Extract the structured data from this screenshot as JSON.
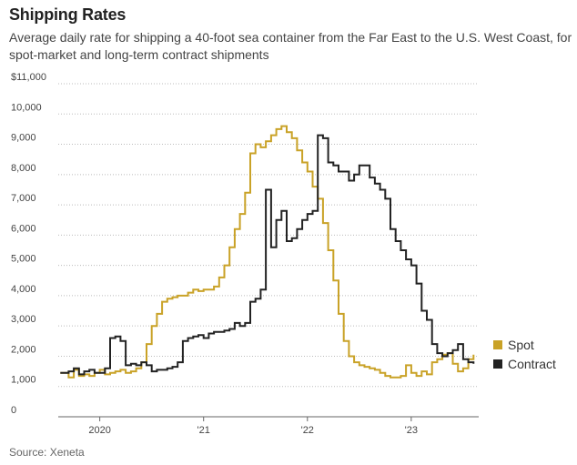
{
  "chart_data": {
    "type": "line",
    "title": "Shipping Rates",
    "subtitle": "Average daily rate for shipping a 40-foot sea container from the Far East to the U.S. West Coast, for spot-market and long-term contract shipments",
    "source": "Source: Xeneta",
    "xlabel": "",
    "ylabel": "",
    "xlim": [
      2019.6,
      2023.65
    ],
    "ylim": [
      0,
      11000
    ],
    "y_ticks": [
      {
        "value": 0,
        "label": "0"
      },
      {
        "value": 1000,
        "label": "1,000"
      },
      {
        "value": 2000,
        "label": "2,000"
      },
      {
        "value": 3000,
        "label": "3,000"
      },
      {
        "value": 4000,
        "label": "4,000"
      },
      {
        "value": 5000,
        "label": "5,000"
      },
      {
        "value": 6000,
        "label": "6,000"
      },
      {
        "value": 7000,
        "label": "7,000"
      },
      {
        "value": 8000,
        "label": "8,000"
      },
      {
        "value": 9000,
        "label": "9,000"
      },
      {
        "value": 10000,
        "label": "10,000"
      },
      {
        "value": 11000,
        "label": "$11,000"
      }
    ],
    "x_ticks": [
      {
        "value": 2020.0,
        "label": "2020"
      },
      {
        "value": 2021.0,
        "label": "'21"
      },
      {
        "value": 2022.0,
        "label": "'22"
      },
      {
        "value": 2023.0,
        "label": "'23"
      }
    ],
    "legend": "right",
    "series": [
      {
        "name": "Spot",
        "color": "#c9a227",
        "x": [
          2019.62,
          2019.7,
          2019.75,
          2019.8,
          2019.85,
          2019.9,
          2019.95,
          2020.0,
          2020.05,
          2020.1,
          2020.15,
          2020.2,
          2020.25,
          2020.3,
          2020.35,
          2020.4,
          2020.45,
          2020.5,
          2020.55,
          2020.6,
          2020.65,
          2020.7,
          2020.75,
          2020.8,
          2020.85,
          2020.9,
          2020.95,
          2021.0,
          2021.05,
          2021.1,
          2021.15,
          2021.2,
          2021.25,
          2021.3,
          2021.35,
          2021.4,
          2021.45,
          2021.5,
          2021.55,
          2021.6,
          2021.65,
          2021.7,
          2021.75,
          2021.8,
          2021.85,
          2021.9,
          2021.95,
          2022.0,
          2022.05,
          2022.1,
          2022.15,
          2022.2,
          2022.25,
          2022.3,
          2022.35,
          2022.4,
          2022.45,
          2022.5,
          2022.55,
          2022.6,
          2022.65,
          2022.7,
          2022.75,
          2022.8,
          2022.85,
          2022.9,
          2022.95,
          2023.0,
          2023.05,
          2023.1,
          2023.15,
          2023.2,
          2023.25,
          2023.3,
          2023.35,
          2023.4,
          2023.45,
          2023.5,
          2023.55,
          2023.6
        ],
        "values": [
          1450,
          1300,
          1550,
          1350,
          1400,
          1350,
          1450,
          1550,
          1400,
          1450,
          1500,
          1550,
          1450,
          1500,
          1600,
          1800,
          2400,
          3000,
          3400,
          3800,
          3900,
          3950,
          4000,
          4000,
          4100,
          4200,
          4150,
          4200,
          4200,
          4300,
          4600,
          5000,
          5600,
          6200,
          6700,
          7400,
          8700,
          9000,
          8900,
          9100,
          9300,
          9500,
          9600,
          9400,
          9200,
          8800,
          8400,
          8100,
          7600,
          7200,
          6400,
          5500,
          4500,
          3400,
          2500,
          2000,
          1800,
          1700,
          1650,
          1600,
          1550,
          1450,
          1350,
          1300,
          1300,
          1350,
          1700,
          1450,
          1350,
          1500,
          1400,
          1800,
          1900,
          2050,
          2100,
          1750,
          1500,
          1600,
          1900,
          2050
        ]
      },
      {
        "name": "Contract",
        "color": "#222222",
        "x": [
          2019.62,
          2019.7,
          2019.75,
          2019.8,
          2019.85,
          2019.9,
          2019.95,
          2020.0,
          2020.05,
          2020.1,
          2020.15,
          2020.2,
          2020.25,
          2020.3,
          2020.35,
          2020.4,
          2020.45,
          2020.5,
          2020.55,
          2020.6,
          2020.65,
          2020.7,
          2020.75,
          2020.8,
          2020.85,
          2020.9,
          2020.95,
          2021.0,
          2021.05,
          2021.1,
          2021.15,
          2021.2,
          2021.25,
          2021.3,
          2021.35,
          2021.4,
          2021.45,
          2021.5,
          2021.55,
          2021.6,
          2021.65,
          2021.7,
          2021.75,
          2021.8,
          2021.85,
          2021.9,
          2021.95,
          2022.0,
          2022.05,
          2022.1,
          2022.15,
          2022.2,
          2022.25,
          2022.3,
          2022.35,
          2022.4,
          2022.45,
          2022.5,
          2022.55,
          2022.6,
          2022.65,
          2022.7,
          2022.75,
          2022.8,
          2022.85,
          2022.9,
          2022.95,
          2023.0,
          2023.05,
          2023.1,
          2023.15,
          2023.2,
          2023.25,
          2023.3,
          2023.35,
          2023.4,
          2023.45,
          2023.5,
          2023.55,
          2023.6
        ],
        "values": [
          1450,
          1500,
          1600,
          1400,
          1500,
          1550,
          1450,
          1450,
          1600,
          2600,
          2650,
          2500,
          1700,
          1750,
          1700,
          1800,
          1700,
          1500,
          1550,
          1550,
          1600,
          1650,
          1800,
          2500,
          2600,
          2650,
          2700,
          2600,
          2750,
          2800,
          2800,
          2850,
          2900,
          3100,
          3000,
          3100,
          3800,
          3900,
          4200,
          7500,
          5600,
          6500,
          6800,
          5800,
          5900,
          6200,
          6500,
          6700,
          6800,
          9300,
          9200,
          8400,
          8300,
          8100,
          8100,
          7800,
          8000,
          8300,
          8300,
          7900,
          7700,
          7500,
          7200,
          6200,
          5800,
          5500,
          5200,
          5000,
          4400,
          3500,
          3200,
          2400,
          2100,
          2000,
          2100,
          2200,
          2400,
          1900,
          1800,
          1750
        ]
      }
    ]
  }
}
